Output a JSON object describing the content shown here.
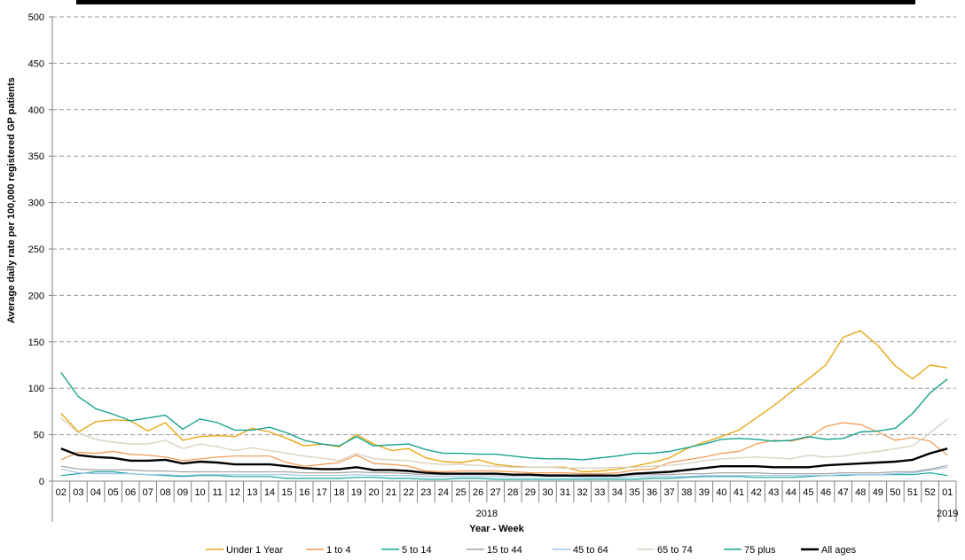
{
  "chart_data": {
    "type": "line",
    "title": "",
    "xlabel": "Year - Week",
    "ylabel": "Average daily rate per 100,000 registered GP patients",
    "ylim": [
      0,
      500
    ],
    "yticks": [
      0,
      50,
      100,
      150,
      200,
      250,
      300,
      350,
      400,
      450,
      500
    ],
    "grid": "horizontal dashed",
    "legend_position": "bottom",
    "x": [
      "02",
      "03",
      "04",
      "05",
      "06",
      "07",
      "08",
      "09",
      "10",
      "11",
      "12",
      "13",
      "14",
      "15",
      "16",
      "17",
      "18",
      "19",
      "20",
      "21",
      "22",
      "23",
      "24",
      "25",
      "26",
      "27",
      "28",
      "29",
      "30",
      "31",
      "32",
      "33",
      "34",
      "35",
      "36",
      "37",
      "38",
      "39",
      "40",
      "41",
      "42",
      "43",
      "44",
      "45",
      "46",
      "47",
      "48",
      "49",
      "50",
      "51",
      "52",
      "01"
    ],
    "year_labels": [
      "2018",
      "2019"
    ],
    "series": [
      {
        "name": "Under 1 Year",
        "color": "#E6A817",
        "width": 1.4,
        "values": [
          73,
          53,
          64,
          66,
          65,
          54,
          63,
          44,
          48,
          49,
          48,
          57,
          53,
          46,
          38,
          40,
          37,
          50,
          40,
          33,
          35,
          25,
          21,
          20,
          23,
          18,
          16,
          15,
          15,
          15,
          10,
          11,
          13,
          16,
          20,
          25,
          35,
          42,
          48,
          55,
          68,
          81,
          96,
          110,
          125,
          155,
          162,
          146,
          124,
          110,
          125,
          122
        ]
      },
      {
        "name": "1 to 4",
        "color": "#F0954B",
        "width": 1.2,
        "values": [
          23,
          31,
          30,
          32,
          29,
          28,
          26,
          22,
          24,
          26,
          27,
          27,
          27,
          20,
          16,
          18,
          20,
          28,
          19,
          18,
          16,
          11,
          10,
          11,
          11,
          11,
          10,
          9,
          9,
          9,
          8,
          8,
          9,
          12,
          13,
          20,
          23,
          26,
          30,
          32,
          40,
          44,
          43,
          47,
          59,
          63,
          61,
          53,
          44,
          47,
          43,
          28
        ]
      },
      {
        "name": "5 to 14",
        "color": "#12A99A",
        "width": 1.2,
        "values": [
          6,
          8,
          10,
          10,
          8,
          7,
          6,
          5,
          6,
          6,
          5,
          5,
          5,
          3,
          3,
          3,
          3,
          4,
          4,
          3,
          3,
          2,
          2,
          3,
          3,
          2,
          2,
          2,
          2,
          2,
          2,
          2,
          2,
          2,
          3,
          3,
          4,
          5,
          5,
          5,
          4,
          4,
          4,
          5,
          6,
          6,
          7,
          7,
          7,
          7,
          9,
          6
        ]
      },
      {
        "name": "15 to 44",
        "color": "#A3A3A3",
        "width": 1.2,
        "values": [
          16,
          13,
          12,
          12,
          12,
          11,
          11,
          10,
          10,
          10,
          10,
          10,
          10,
          10,
          9,
          9,
          9,
          10,
          9,
          9,
          8,
          7,
          7,
          7,
          7,
          7,
          7,
          7,
          7,
          7,
          6,
          6,
          6,
          7,
          7,
          7,
          8,
          8,
          9,
          9,
          9,
          8,
          8,
          8,
          8,
          9,
          9,
          9,
          10,
          10,
          13,
          17
        ]
      },
      {
        "name": "45 to 64",
        "color": "#9DC3E6",
        "width": 1.2,
        "values": [
          13,
          9,
          8,
          8,
          8,
          7,
          7,
          6,
          7,
          7,
          7,
          7,
          7,
          7,
          6,
          6,
          6,
          7,
          6,
          6,
          6,
          5,
          5,
          5,
          5,
          5,
          5,
          5,
          5,
          5,
          4,
          4,
          4,
          5,
          5,
          5,
          5,
          6,
          6,
          6,
          6,
          6,
          6,
          6,
          6,
          7,
          7,
          7,
          8,
          9,
          12,
          15
        ]
      },
      {
        "name": "65 to 74",
        "color": "#D9D2C0",
        "width": 1.4,
        "values": [
          68,
          52,
          45,
          42,
          40,
          40,
          44,
          35,
          40,
          37,
          33,
          36,
          33,
          30,
          27,
          25,
          22,
          30,
          24,
          23,
          22,
          19,
          18,
          18,
          17,
          16,
          15,
          15,
          15,
          14,
          14,
          14,
          15,
          15,
          16,
          17,
          19,
          22,
          24,
          25,
          26,
          25,
          24,
          28,
          26,
          27,
          30,
          32,
          35,
          38,
          52,
          67
        ]
      },
      {
        "name": "75 plus",
        "color": "#16A38E",
        "width": 1.4,
        "values": [
          117,
          91,
          78,
          72,
          65,
          68,
          71,
          56,
          67,
          63,
          55,
          55,
          58,
          52,
          44,
          40,
          38,
          48,
          38,
          39,
          40,
          34,
          30,
          30,
          29,
          29,
          27,
          25,
          24,
          24,
          23,
          25,
          27,
          30,
          30,
          32,
          36,
          40,
          45,
          46,
          45,
          43,
          44,
          48,
          45,
          46,
          53,
          54,
          57,
          73,
          95,
          110
        ]
      },
      {
        "name": "All ages",
        "color": "#000000",
        "width": 2.4,
        "values": [
          35,
          28,
          26,
          25,
          22,
          22,
          23,
          19,
          21,
          20,
          18,
          18,
          18,
          16,
          14,
          13,
          13,
          15,
          12,
          12,
          11,
          9,
          8,
          8,
          8,
          8,
          7,
          7,
          6,
          6,
          6,
          6,
          6,
          8,
          9,
          10,
          12,
          14,
          16,
          16,
          16,
          15,
          15,
          15,
          17,
          18,
          19,
          20,
          21,
          23,
          30,
          35
        ]
      }
    ]
  }
}
